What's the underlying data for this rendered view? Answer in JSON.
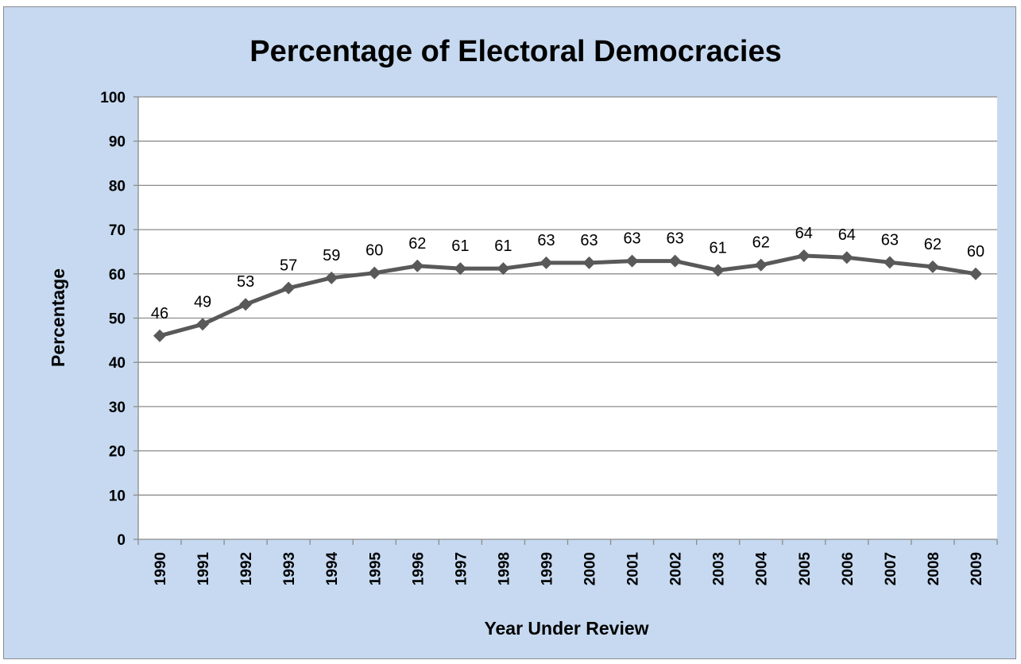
{
  "chart_data": {
    "type": "line",
    "title": "Percentage of Electoral Democracies",
    "xlabel": "Year Under Review",
    "ylabel": "Percentage",
    "ylim": [
      0,
      100
    ],
    "yticks": [
      0,
      10,
      20,
      30,
      40,
      50,
      60,
      70,
      80,
      90,
      100
    ],
    "grid": "horizontal",
    "legend": "none",
    "categories": [
      "1990",
      "1991",
      "1992",
      "1993",
      "1994",
      "1995",
      "1996",
      "1997",
      "1998",
      "1999",
      "2000",
      "2001",
      "2002",
      "2003",
      "2004",
      "2005",
      "2006",
      "2007",
      "2008",
      "2009"
    ],
    "series": [
      {
        "values": [
          46,
          48.6,
          53.1,
          56.8,
          59.1,
          60.2,
          61.8,
          61.2,
          61.2,
          62.5,
          62.5,
          62.9,
          62.9,
          60.8,
          62,
          64.1,
          63.7,
          62.6,
          61.6,
          60
        ],
        "labels": [
          "46",
          "49",
          "53",
          "57",
          "59",
          "60",
          "62",
          "61",
          "61",
          "63",
          "63",
          "63",
          "63",
          "61",
          "62",
          "64",
          "64",
          "63",
          "62",
          "60"
        ],
        "color": "#595959"
      }
    ],
    "colors": {
      "background": "#c6d9f0",
      "plot_area": "#ffffff",
      "gridline": "#8c8c8c",
      "line": "#595959"
    }
  }
}
